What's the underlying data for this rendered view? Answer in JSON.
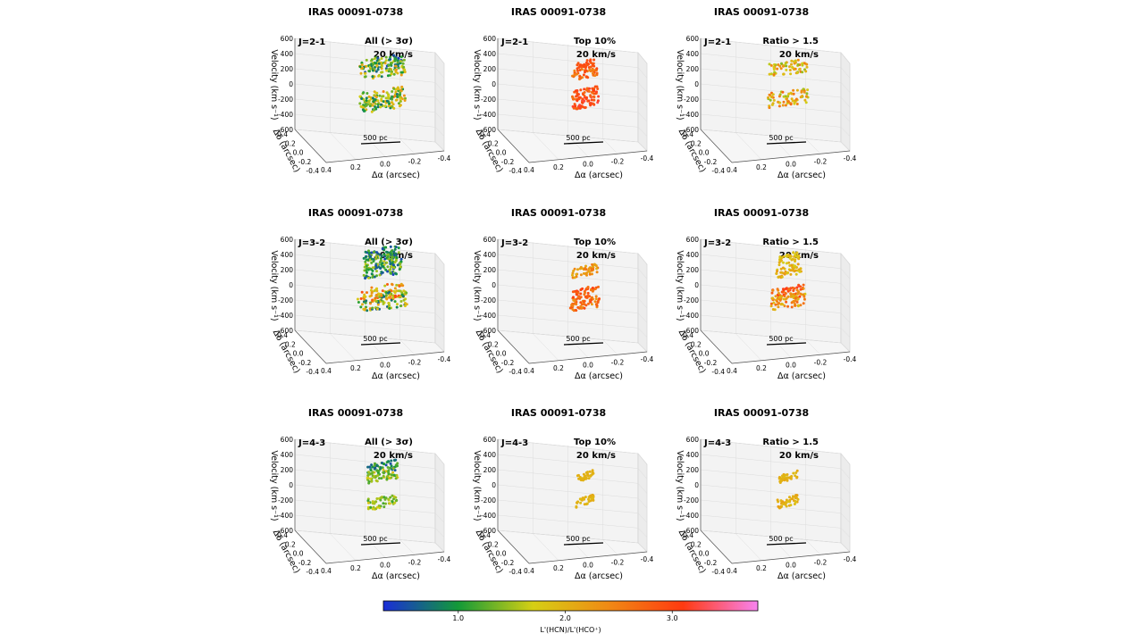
{
  "figure": {
    "object_name": "IRAS 00091-0738",
    "colorbar": {
      "label": "L'(HCN)/L'(HCO⁺)",
      "ticks": [
        "1.0",
        "2.0",
        "3.0"
      ],
      "tick_values": [
        1.0,
        2.0,
        3.0
      ],
      "range": [
        0.3,
        3.8
      ],
      "colormap": [
        "#1a2dd8",
        "#139a38",
        "#d6cf14",
        "#f08a14",
        "#ff3a10",
        "#f783f0"
      ]
    }
  },
  "chart_data": {
    "type": "scatter",
    "axes": {
      "xlabel": "Δα (arcsec)",
      "ylabel": "Δδ (arcsec)",
      "zlabel": "Velocity (km s⁻¹)",
      "x_ticks": [
        "0.4",
        "0.2",
        "0.0",
        "-0.2",
        "-0.4"
      ],
      "y_ticks": [
        "0.4",
        "0.2",
        "0.0",
        "-0.2",
        "-0.4"
      ],
      "z_ticks": [
        "600",
        "400",
        "200",
        "0",
        "-200",
        "-400",
        "-600"
      ],
      "xlim": [
        -0.4,
        0.4
      ],
      "ylim": [
        -0.4,
        0.4
      ],
      "zlim": [
        -600,
        600
      ],
      "scalebar_label": "500 pc",
      "channel_label": "20 km/s"
    },
    "panels": [
      {
        "transition": "J=2-1",
        "selection": "All (> 3σ)",
        "clusters": [
          {
            "vel": 250,
            "ratio": 1.05,
            "spread": 0.7
          },
          {
            "vel": 150,
            "ratio": 1.5,
            "spread": 0.8
          },
          {
            "vel": -280,
            "ratio": 1.7,
            "spread": 0.8
          },
          {
            "vel": -380,
            "ratio": 1.4,
            "spread": 0.7
          }
        ]
      },
      {
        "transition": "J=2-1",
        "selection": "Top 10%",
        "clusters": [
          {
            "vel": 230,
            "ratio": 2.9,
            "spread": 0.1
          },
          {
            "vel": 100,
            "ratio": 2.7,
            "spread": 0.3
          },
          {
            "vel": -230,
            "ratio": 2.9,
            "spread": 0.3
          },
          {
            "vel": -370,
            "ratio": 3.0,
            "spread": 0.3
          }
        ]
      },
      {
        "transition": "J=2-1",
        "selection": "Ratio > 1.5",
        "clusters": [
          {
            "vel": 180,
            "ratio": 2.0,
            "spread": 0.6
          },
          {
            "vel": -300,
            "ratio": 2.1,
            "spread": 0.7
          }
        ]
      },
      {
        "transition": "J=3-2",
        "selection": "All (> 3σ)",
        "clusters": [
          {
            "vel": 420,
            "ratio": 0.9,
            "spread": 0.5
          },
          {
            "vel": 300,
            "ratio": 1.1,
            "spread": 0.6
          },
          {
            "vel": 170,
            "ratio": 1.0,
            "spread": 0.6
          },
          {
            "vel": -200,
            "ratio": 2.2,
            "spread": 0.8
          },
          {
            "vel": -330,
            "ratio": 1.5,
            "spread": 0.9
          }
        ]
      },
      {
        "transition": "J=3-2",
        "selection": "Top 10%",
        "clusters": [
          {
            "vel": 150,
            "ratio": 2.3,
            "spread": 0.3
          },
          {
            "vel": -200,
            "ratio": 2.8,
            "spread": 0.3
          },
          {
            "vel": -370,
            "ratio": 2.6,
            "spread": 0.4
          }
        ]
      },
      {
        "transition": "J=3-2",
        "selection": "Ratio > 1.5",
        "clusters": [
          {
            "vel": 350,
            "ratio": 1.9,
            "spread": 0.2
          },
          {
            "vel": 150,
            "ratio": 2.0,
            "spread": 0.3
          },
          {
            "vel": -200,
            "ratio": 2.7,
            "spread": 0.5
          },
          {
            "vel": -340,
            "ratio": 2.3,
            "spread": 0.5
          }
        ]
      },
      {
        "transition": "J=4-3",
        "selection": "All (> 3σ)",
        "clusters": [
          {
            "vel": 200,
            "ratio": 0.9,
            "spread": 0.4
          },
          {
            "vel": 80,
            "ratio": 1.5,
            "spread": 0.4
          },
          {
            "vel": -350,
            "ratio": 1.5,
            "spread": 0.4
          }
        ]
      },
      {
        "transition": "J=4-3",
        "selection": "Top 10%",
        "clusters": [
          {
            "vel": 60,
            "ratio": 2.0,
            "spread": 0.05
          },
          {
            "vel": -330,
            "ratio": 2.0,
            "spread": 0.1
          }
        ]
      },
      {
        "transition": "J=4-3",
        "selection": "Ratio > 1.5",
        "clusters": [
          {
            "vel": 60,
            "ratio": 2.0,
            "spread": 0.1
          },
          {
            "vel": -340,
            "ratio": 2.0,
            "spread": 0.2
          }
        ]
      }
    ]
  }
}
